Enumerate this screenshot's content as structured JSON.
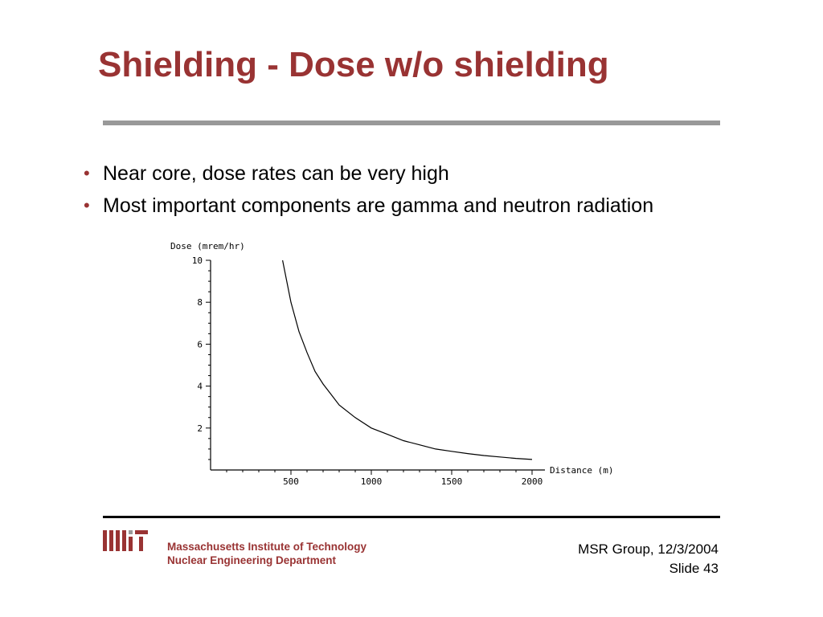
{
  "slide": {
    "title": "Shielding - Dose w/o shielding",
    "bullets": [
      "Near core, dose rates can be very high",
      "Most important components are gamma and neutron radiation"
    ],
    "footer": {
      "institute_line1": "Massachusetts Institute of Technology",
      "institute_line2": "Nuclear Engineering Department",
      "logo_text": "MIT",
      "group_date": "MSR Group, 12/3/2004",
      "slide_number": "Slide 43"
    },
    "colors": {
      "title": "#993333",
      "rule": "#999999",
      "bullet": "#993333"
    }
  },
  "chart_data": {
    "type": "line",
    "xlabel": "Distance (m)",
    "ylabel": "Dose (mrem/hr)",
    "xlim": [
      0,
      2000
    ],
    "ylim": [
      0,
      10
    ],
    "xticks": [
      500,
      1000,
      1500,
      2000
    ],
    "yticks": [
      2,
      4,
      6,
      8,
      10
    ],
    "grid": false,
    "series": [
      {
        "x": [
          448,
          500,
          550,
          600,
          650,
          700,
          750,
          800,
          900,
          1000,
          1100,
          1200,
          1300,
          1400,
          1500,
          1600,
          1700,
          1800,
          1900,
          2000
        ],
        "y": [
          10.0,
          8.0,
          6.6,
          5.6,
          4.7,
          4.1,
          3.6,
          3.1,
          2.5,
          2.0,
          1.7,
          1.4,
          1.2,
          1.0,
          0.89,
          0.78,
          0.69,
          0.62,
          0.55,
          0.5
        ]
      }
    ]
  }
}
